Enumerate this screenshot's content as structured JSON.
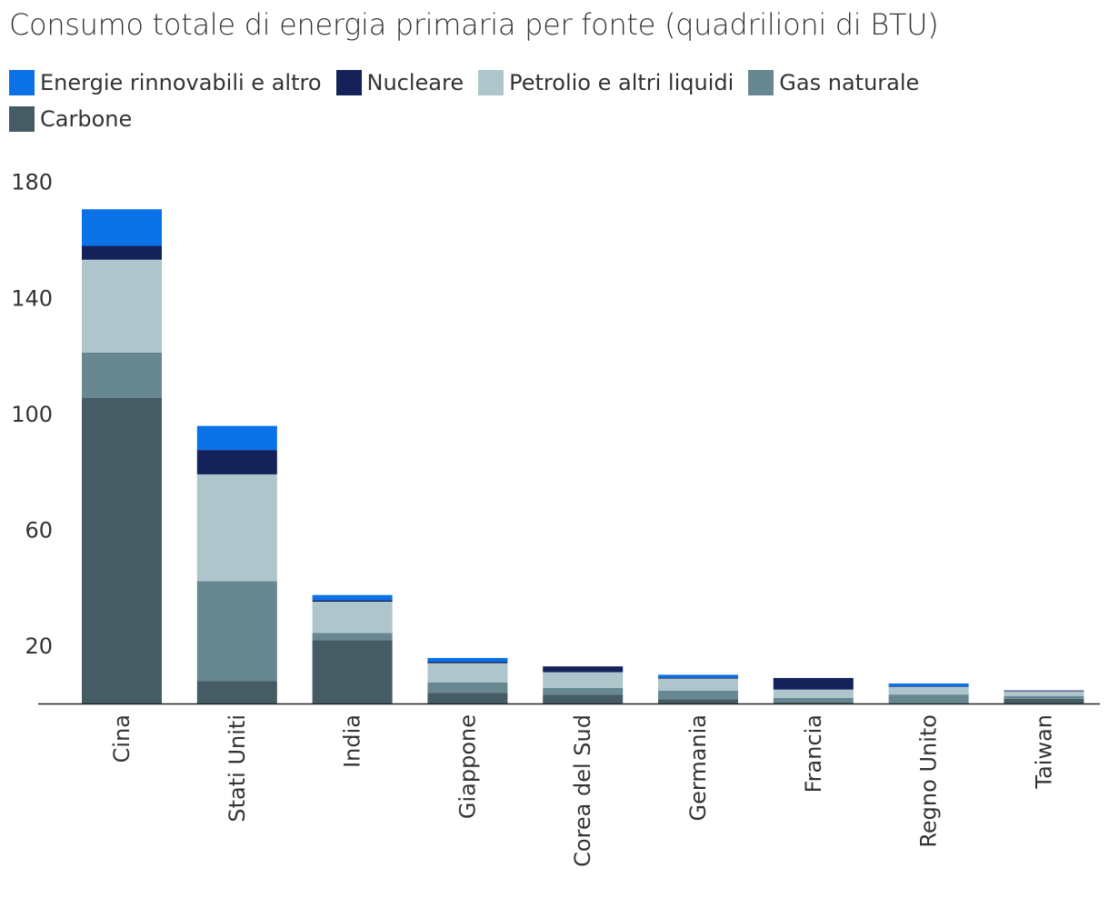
{
  "chart_data": {
    "type": "bar",
    "stacked": true,
    "title": "Consumo totale di energia primaria per fonte (quadrilioni di BTU)",
    "xlabel": "",
    "ylabel": "",
    "ylim": [
      0,
      180
    ],
    "yticks": [
      20,
      60,
      100,
      140,
      180
    ],
    "grid": false,
    "legend_position": "top-left",
    "categories": [
      "Cina",
      "Stati Uniti",
      "India",
      "Giappone",
      "Corea del Sud",
      "Germania",
      "Francia",
      "Regno Unito",
      "Taiwan"
    ],
    "legend_order": [
      4,
      3,
      2,
      1,
      0
    ],
    "series": [
      {
        "name": "Carbone",
        "color": "#465c64",
        "values": [
          105.3,
          7.8,
          21.8,
          3.7,
          3.0,
          1.5,
          0.3,
          0.2,
          1.6
        ]
      },
      {
        "name": "Gas naturale",
        "color": "#678890",
        "values": [
          15.7,
          34.4,
          2.5,
          3.6,
          2.4,
          2.9,
          1.6,
          2.9,
          1.0
        ]
      },
      {
        "name": "Petrolio e altri liquidi",
        "color": "#aec5cc",
        "values": [
          32.0,
          36.8,
          10.8,
          6.6,
          5.4,
          4.2,
          2.9,
          2.6,
          1.6
        ]
      },
      {
        "name": "Nucleare",
        "color": "#15225a",
        "values": [
          4.8,
          8.4,
          0.5,
          0.5,
          2.0,
          0.3,
          4.0,
          0.2,
          0.3
        ]
      },
      {
        "name": "Energie rinnovabili e altro",
        "color": "#0a72e6",
        "values": [
          12.6,
          8.3,
          1.8,
          1.3,
          0.0,
          1.0,
          0.0,
          1.0,
          0.0
        ]
      }
    ]
  }
}
